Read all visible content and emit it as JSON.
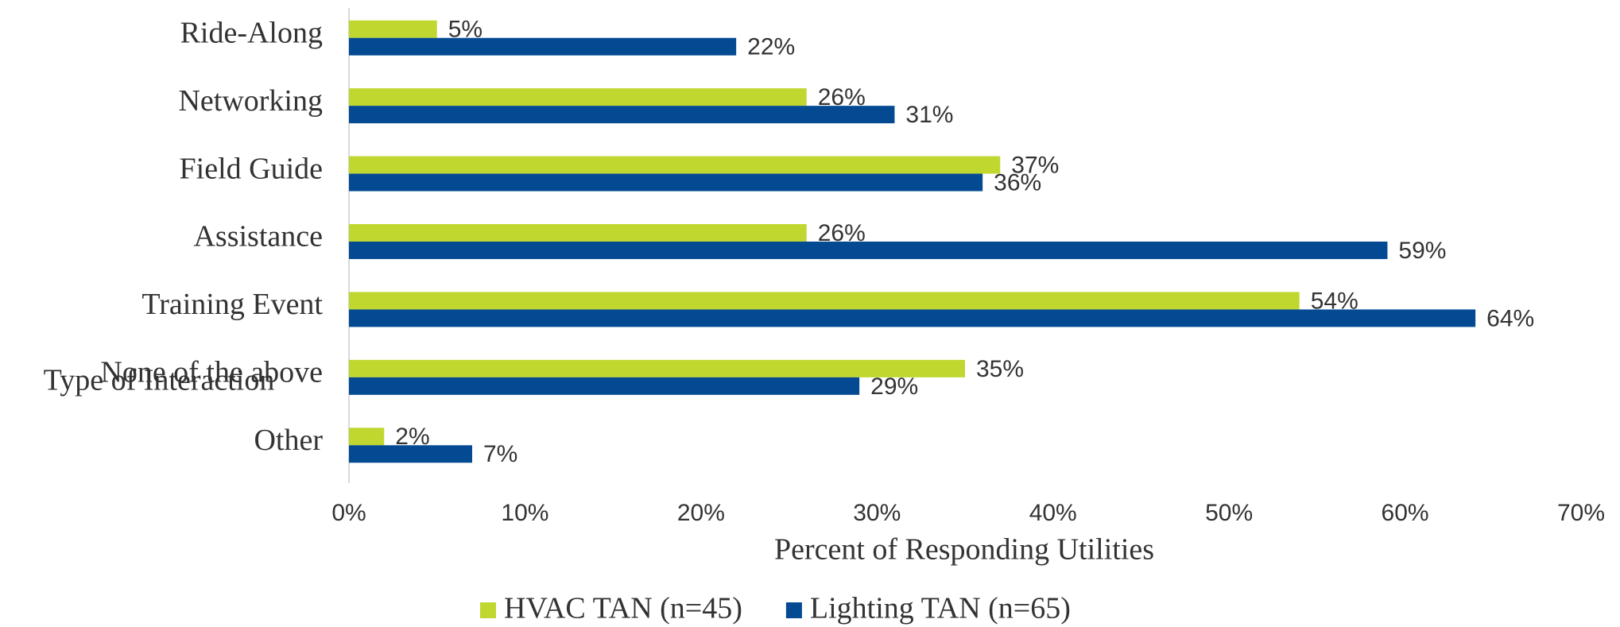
{
  "chart_data": {
    "type": "bar",
    "orientation": "horizontal",
    "categories": [
      "Ride-Along",
      "Networking",
      "Field Guide",
      "Assistance",
      "Training Event",
      "None of the above",
      "Other"
    ],
    "series": [
      {
        "name": "HVAC TAN (n=45)",
        "color": "#c0d72f",
        "values": [
          5,
          26,
          37,
          26,
          54,
          35,
          2
        ],
        "value_labels": [
          "5%",
          "26%",
          "37%",
          "26%",
          "54%",
          "35%",
          "2%"
        ]
      },
      {
        "name": "Lighting TAN (n=65)",
        "color": "#034a93",
        "values": [
          22,
          31,
          36,
          59,
          64,
          29,
          7
        ],
        "value_labels": [
          "22%",
          "31%",
          "36%",
          "59%",
          "64%",
          "29%",
          "7%"
        ]
      }
    ],
    "xlim": [
      0,
      70
    ],
    "xticks": [
      {
        "value": 0,
        "label": "0%"
      },
      {
        "value": 10,
        "label": "10%"
      },
      {
        "value": 20,
        "label": "20%"
      },
      {
        "value": 30,
        "label": "30%"
      },
      {
        "value": 40,
        "label": "40%"
      },
      {
        "value": 50,
        "label": "50%"
      },
      {
        "value": 60,
        "label": "60%"
      },
      {
        "value": 70,
        "label": "70%"
      }
    ],
    "x_label": "Percent of Responding Utilities",
    "y_label": "Type of Interaction",
    "legend": "bottom"
  }
}
